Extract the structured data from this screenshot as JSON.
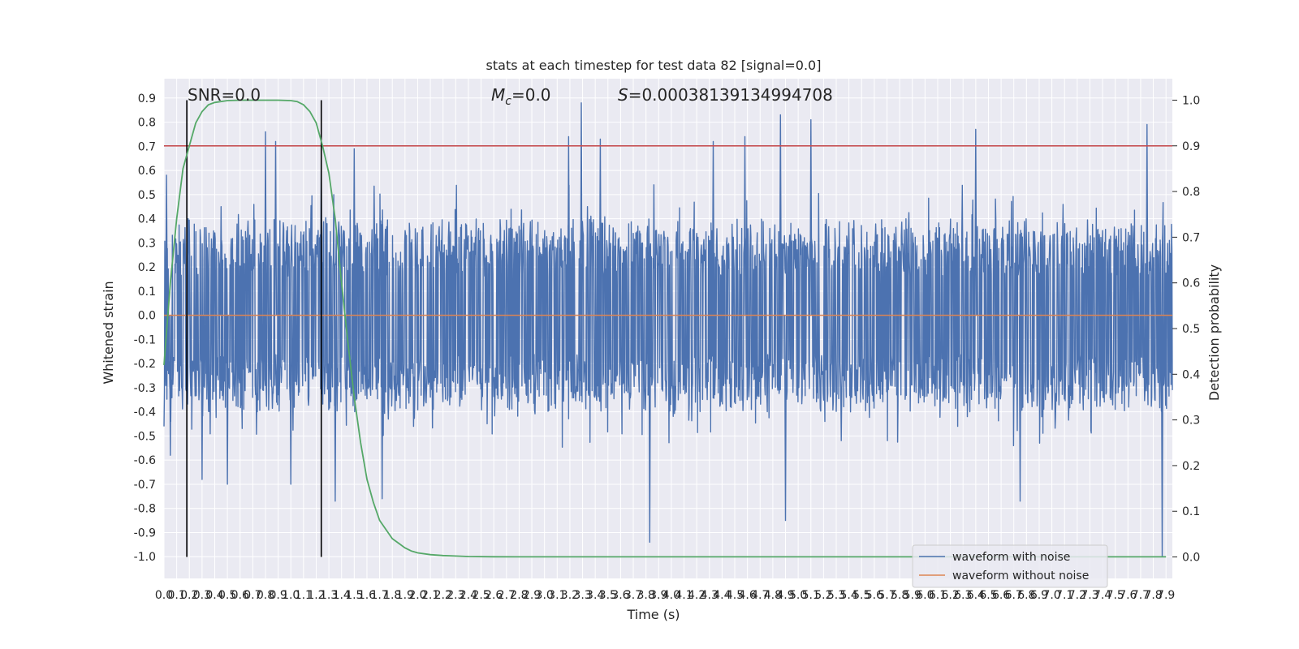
{
  "chart_data": {
    "type": "line",
    "title": "stats at each timestep for test data 82 [signal=0.0]",
    "xlabel": "Time (s)",
    "ylabel": "Whitened strain",
    "y2label": "Detection probability",
    "xlim": [
      0.0,
      7.95
    ],
    "ylim": [
      -1.09,
      0.98
    ],
    "y2lim": [
      -0.047,
      1.047
    ],
    "x_ticks": [
      "0.0",
      "0.1",
      "0.2",
      "0.3",
      "0.4",
      "0.5",
      "0.6",
      "0.7",
      "0.8",
      "0.9",
      "1.0",
      "1.1",
      "1.2",
      "1.3",
      "1.4",
      "1.5",
      "1.6",
      "1.7",
      "1.8",
      "1.9",
      "2.0",
      "2.1",
      "2.2",
      "2.3",
      "2.4",
      "2.5",
      "2.6",
      "2.7",
      "2.8",
      "2.9",
      "3.0",
      "3.1",
      "3.2",
      "3.3",
      "3.4",
      "3.5",
      "3.6",
      "3.7",
      "3.8",
      "3.9",
      "4.0",
      "4.1",
      "4.2",
      "4.3",
      "4.4",
      "4.5",
      "4.6",
      "4.7",
      "4.8",
      "4.9",
      "5.0",
      "5.1",
      "5.2",
      "5.3",
      "5.4",
      "5.5",
      "5.6",
      "5.7",
      "5.8",
      "5.9",
      "6.0",
      "6.1",
      "6.2",
      "6.3",
      "6.4",
      "6.5",
      "6.6",
      "6.7",
      "6.8",
      "6.9",
      "7.0",
      "7.1",
      "7.2",
      "7.3",
      "7.4",
      "7.5",
      "7.6",
      "7.7",
      "7.8",
      "7.9"
    ],
    "y_ticks": [
      "0.9",
      "0.8",
      "0.7",
      "0.6",
      "0.5",
      "0.4",
      "0.3",
      "0.2",
      "0.1",
      "0.0",
      "-0.1",
      "-0.2",
      "-0.3",
      "-0.4",
      "-0.5",
      "-0.6",
      "-0.7",
      "-0.8",
      "-0.9",
      "-1.0"
    ],
    "y2_ticks": [
      "1.0",
      "0.9",
      "0.8",
      "0.7",
      "0.6",
      "0.5",
      "0.4",
      "0.3",
      "0.2",
      "0.1",
      "0.0"
    ],
    "threshold": 0.9,
    "vlines": [
      0.18,
      1.24
    ],
    "series": [
      {
        "name": "waveform with noise",
        "color": "#4c72b0",
        "axis": "left",
        "peaks": [
          {
            "x": 0.02,
            "y": 0.58
          },
          {
            "x": 0.19,
            "y": 0.4
          },
          {
            "x": 0.45,
            "y": 0.45
          },
          {
            "x": 0.8,
            "y": 0.76
          },
          {
            "x": 0.88,
            "y": 0.72
          },
          {
            "x": 1.24,
            "y": 0.66
          },
          {
            "x": 1.5,
            "y": 0.69
          },
          {
            "x": 3.19,
            "y": 0.74
          },
          {
            "x": 3.29,
            "y": 0.88
          },
          {
            "x": 3.44,
            "y": 0.73
          },
          {
            "x": 4.33,
            "y": 0.72
          },
          {
            "x": 4.58,
            "y": 0.74
          },
          {
            "x": 4.86,
            "y": 0.83
          },
          {
            "x": 5.1,
            "y": 0.81
          },
          {
            "x": 6.4,
            "y": 0.77
          },
          {
            "x": 7.75,
            "y": 0.79
          }
        ],
        "troughs": [
          {
            "x": 0.05,
            "y": -0.58
          },
          {
            "x": 0.3,
            "y": -0.68
          },
          {
            "x": 0.5,
            "y": -0.7
          },
          {
            "x": 1.0,
            "y": -0.7
          },
          {
            "x": 1.35,
            "y": -0.77
          },
          {
            "x": 1.72,
            "y": -0.76
          },
          {
            "x": 3.83,
            "y": -0.94
          },
          {
            "x": 4.9,
            "y": -0.85
          },
          {
            "x": 6.75,
            "y": -0.77
          },
          {
            "x": 7.87,
            "y": -1.0
          }
        ]
      },
      {
        "name": "waveform without noise",
        "color": "#dd8452",
        "axis": "left",
        "x": [
          0.0,
          7.95
        ],
        "y": [
          0.0,
          0.0
        ]
      },
      {
        "name": "detection probability",
        "color": "#55a868",
        "axis": "right",
        "x": [
          0.0,
          0.05,
          0.1,
          0.15,
          0.2,
          0.25,
          0.3,
          0.35,
          0.4,
          0.5,
          0.6,
          0.7,
          0.8,
          0.9,
          1.0,
          1.05,
          1.1,
          1.15,
          1.2,
          1.25,
          1.3,
          1.35,
          1.4,
          1.45,
          1.5,
          1.55,
          1.6,
          1.65,
          1.7,
          1.75,
          1.8,
          1.85,
          1.9,
          1.95,
          2.0,
          2.1,
          2.2,
          2.3,
          2.4,
          2.6,
          3.0,
          4.0,
          5.0,
          6.0,
          7.0,
          7.9
        ],
        "y": [
          0.42,
          0.6,
          0.74,
          0.85,
          0.9,
          0.95,
          0.975,
          0.99,
          0.995,
          0.999,
          1.0,
          1.0,
          1.0,
          1.0,
          0.999,
          0.997,
          0.99,
          0.975,
          0.95,
          0.9,
          0.84,
          0.74,
          0.6,
          0.47,
          0.35,
          0.25,
          0.17,
          0.12,
          0.08,
          0.06,
          0.04,
          0.03,
          0.02,
          0.013,
          0.009,
          0.005,
          0.003,
          0.002,
          0.001,
          0.0005,
          0.0003,
          0.0002,
          0.0002,
          0.0002,
          0.0002,
          0.0002
        ]
      }
    ],
    "legend": {
      "placement": "bottom-right",
      "entries": [
        {
          "label": "waveform with noise",
          "color": "#4c72b0"
        },
        {
          "label": "waveform without noise",
          "color": "#dd8452"
        }
      ]
    },
    "annotations": {
      "snr": "SNR=0.0",
      "mc_symbol": "M",
      "mc_subscript": "c",
      "mc_value": "=0.0",
      "s_symbol": "S",
      "s_value": "=0.00038139134994708"
    },
    "grid": true
  },
  "colors": {
    "plot_background": "#eaeaf2",
    "grid": "#ffffff",
    "threshold": "#c44e52",
    "vline": "#000000"
  }
}
